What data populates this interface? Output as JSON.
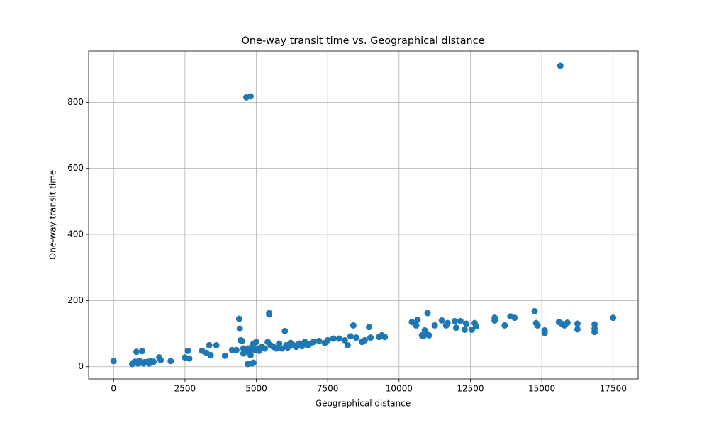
{
  "chart_data": {
    "type": "scatter",
    "title": "One-way transit time vs. Geographical distance",
    "x_label": "Geographical distance",
    "y_label": "One-way transit time",
    "color": "#1f77b4",
    "grid": true,
    "xlim": [
      -875,
      18375
    ],
    "ylim": [
      -37,
      955
    ],
    "xticks": [
      0,
      2500,
      5000,
      7500,
      10000,
      12500,
      15000,
      17500
    ],
    "yticks": [
      0,
      200,
      400,
      600,
      800
    ],
    "x": [
      0,
      650,
      700,
      750,
      800,
      850,
      900,
      950,
      1000,
      1050,
      1100,
      1200,
      1250,
      1300,
      1350,
      1400,
      1600,
      1650,
      2000,
      2500,
      2600,
      2650,
      3100,
      3250,
      3350,
      3400,
      3600,
      3900,
      4150,
      4300,
      4400,
      4420,
      4450,
      4500,
      4550,
      4600,
      4650,
      4700,
      4800,
      4850,
      4900,
      4550,
      4600,
      4700,
      4750,
      4800,
      4850,
      4900,
      4950,
      5000,
      5050,
      5100,
      5200,
      5300,
      5400,
      5450,
      5450,
      5500,
      5600,
      5700,
      5800,
      5900,
      6000,
      6050,
      6100,
      6200,
      6300,
      6400,
      6500,
      6600,
      6700,
      6800,
      6900,
      7000,
      7200,
      7400,
      7500,
      7700,
      7900,
      8100,
      8200,
      8300,
      8400,
      8500,
      8700,
      8800,
      8950,
      9000,
      9300,
      9400,
      9500,
      10450,
      10600,
      10650,
      10800,
      10850,
      10900,
      10950,
      11000,
      11050,
      11250,
      11500,
      11650,
      11700,
      11950,
      12000,
      12150,
      12300,
      12350,
      12550,
      12650,
      12700,
      13350,
      13350,
      13700,
      13900,
      14050,
      14750,
      14800,
      14850,
      15100,
      15100,
      15650,
      15600,
      15700,
      15800,
      15900,
      16250,
      16250,
      16850,
      16850,
      16850,
      17500
    ],
    "values": [
      17,
      8,
      12,
      15,
      45,
      10,
      18,
      12,
      47,
      10,
      14,
      15,
      10,
      17,
      13,
      15,
      28,
      20,
      17,
      28,
      48,
      25,
      48,
      42,
      65,
      35,
      65,
      33,
      50,
      50,
      145,
      115,
      80,
      78,
      55,
      45,
      815,
      8,
      818,
      10,
      12,
      40,
      50,
      55,
      45,
      35,
      60,
      70,
      50,
      75,
      55,
      48,
      60,
      55,
      75,
      162,
      158,
      65,
      60,
      55,
      70,
      55,
      108,
      65,
      58,
      72,
      65,
      60,
      70,
      62,
      75,
      65,
      70,
      75,
      78,
      72,
      80,
      85,
      85,
      80,
      65,
      92,
      125,
      88,
      75,
      80,
      120,
      88,
      90,
      95,
      90,
      135,
      125,
      142,
      95,
      92,
      110,
      100,
      162,
      95,
      125,
      140,
      125,
      132,
      138,
      118,
      138,
      112,
      130,
      112,
      132,
      122,
      140,
      148,
      125,
      152,
      148,
      168,
      132,
      125,
      110,
      102,
      910,
      135,
      130,
      125,
      133,
      130,
      113,
      128,
      105,
      115,
      148
    ]
  }
}
